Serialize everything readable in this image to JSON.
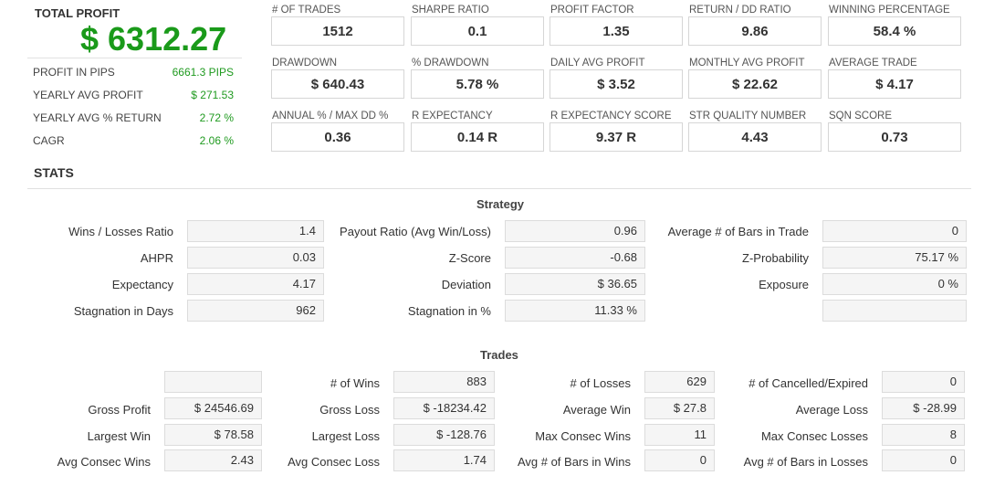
{
  "summary": {
    "total_profit_label": "TOTAL PROFIT",
    "total_profit_value": "$ 6312.27",
    "rows": [
      {
        "label": "PROFIT IN PIPS",
        "value": "6661.3 PIPS"
      },
      {
        "label": "YEARLY AVG PROFIT",
        "value": "$ 271.53"
      },
      {
        "label": "YEARLY AVG % RETURN",
        "value": "2.72 %"
      },
      {
        "label": "CAGR",
        "value": "2.06 %"
      }
    ]
  },
  "metrics": [
    {
      "label": "# OF TRADES",
      "value": "1512"
    },
    {
      "label": "SHARPE RATIO",
      "value": "0.1"
    },
    {
      "label": "PROFIT FACTOR",
      "value": "1.35"
    },
    {
      "label": "RETURN / DD RATIO",
      "value": "9.86"
    },
    {
      "label": "WINNING PERCENTAGE",
      "value": "58.4 %"
    },
    {
      "label": "DRAWDOWN",
      "value": "$ 640.43"
    },
    {
      "label": "% DRAWDOWN",
      "value": "5.78 %"
    },
    {
      "label": "DAILY AVG PROFIT",
      "value": "$ 3.52"
    },
    {
      "label": "MONTHLY AVG PROFIT",
      "value": "$ 22.62"
    },
    {
      "label": "AVERAGE TRADE",
      "value": "$ 4.17"
    },
    {
      "label": "ANNUAL % / MAX DD %",
      "value": "0.36"
    },
    {
      "label": "R EXPECTANCY",
      "value": "0.14 R"
    },
    {
      "label": "R EXPECTANCY SCORE",
      "value": "9.37 R"
    },
    {
      "label": "STR QUALITY NUMBER",
      "value": "4.43"
    },
    {
      "label": "SQN SCORE",
      "value": "0.73"
    }
  ],
  "stats": {
    "heading": "STATS",
    "strategy": {
      "title": "Strategy",
      "rows": [
        [
          {
            "label": "Wins / Losses Ratio",
            "value": "1.4"
          },
          {
            "label": "Payout Ratio (Avg Win/Loss)",
            "value": "0.96"
          },
          {
            "label": "Average # of Bars in Trade",
            "value": "0"
          }
        ],
        [
          {
            "label": "AHPR",
            "value": "0.03"
          },
          {
            "label": "Z-Score",
            "value": "-0.68"
          },
          {
            "label": "Z-Probability",
            "value": "75.17 %"
          }
        ],
        [
          {
            "label": "Expectancy",
            "value": "4.17"
          },
          {
            "label": "Deviation",
            "value": "$ 36.65"
          },
          {
            "label": "Exposure",
            "value": "0 %"
          }
        ],
        [
          {
            "label": "Stagnation in Days",
            "value": "962"
          },
          {
            "label": "Stagnation in %",
            "value": "11.33 %"
          },
          {
            "label": "",
            "value": ""
          }
        ]
      ]
    },
    "trades": {
      "title": "Trades",
      "rows": [
        [
          {
            "label": "",
            "value": ""
          },
          {
            "label": "# of Wins",
            "value": "883"
          },
          {
            "label": "# of Losses",
            "value": "629"
          },
          {
            "label": "# of Cancelled/Expired",
            "value": "0"
          }
        ],
        [
          {
            "label": "Gross Profit",
            "value": "$ 24546.69"
          },
          {
            "label": "Gross Loss",
            "value": "$ -18234.42"
          },
          {
            "label": "Average Win",
            "value": "$ 27.8"
          },
          {
            "label": "Average Loss",
            "value": "$ -28.99"
          }
        ],
        [
          {
            "label": "Largest Win",
            "value": "$ 78.58"
          },
          {
            "label": "Largest Loss",
            "value": "$ -128.76"
          },
          {
            "label": "Max Consec Wins",
            "value": "11"
          },
          {
            "label": "Max Consec Losses",
            "value": "8"
          }
        ],
        [
          {
            "label": "Avg Consec Wins",
            "value": "2.43"
          },
          {
            "label": "Avg Consec Loss",
            "value": "1.74"
          },
          {
            "label": "Avg # of Bars in Wins",
            "value": "0"
          },
          {
            "label": "Avg # of Bars in Losses",
            "value": "0"
          }
        ]
      ]
    }
  }
}
